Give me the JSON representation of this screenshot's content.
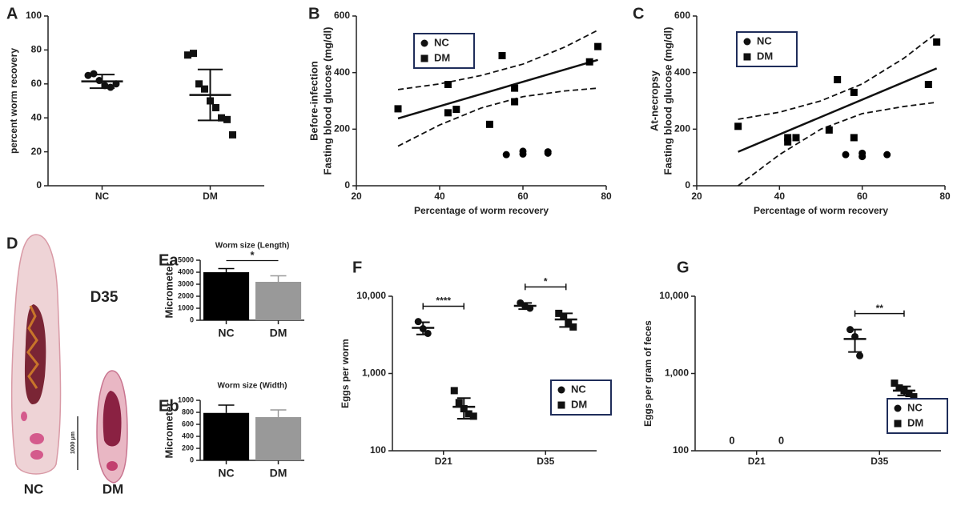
{
  "chart_data": [
    {
      "type": "dotplot",
      "label": "A",
      "ylabel": "percent worm recovery",
      "categories": [
        "NC",
        "DM"
      ],
      "markers": [
        "circle",
        "square"
      ],
      "values": [
        [
          65,
          66,
          62,
          59,
          58,
          60
        ],
        [
          77,
          78,
          60,
          57,
          50,
          46,
          40,
          39,
          30
        ]
      ],
      "mean": [
        61.5,
        53.5
      ],
      "sd": [
        4,
        15
      ],
      "ylim": [
        0,
        100
      ],
      "yticks": [
        0,
        20,
        40,
        60,
        80,
        100
      ]
    },
    {
      "type": "scatter",
      "label": "B",
      "xlabel": "Percentage of worm recovery",
      "ylabel": [
        "Before-infection",
        "Fasting blood glucose (mg/dl)"
      ],
      "xlim": [
        20,
        80
      ],
      "xticks": [
        20,
        40,
        60,
        80
      ],
      "ylim": [
        0,
        600
      ],
      "yticks": [
        0,
        200,
        400,
        600
      ],
      "legend": "upper left",
      "series": [
        {
          "name": "NC",
          "marker": "circle",
          "color": "#000000",
          "x": [
            56,
            60,
            60,
            66,
            66
          ],
          "y": [
            110,
            112,
            122,
            115,
            120
          ]
        },
        {
          "name": "DM",
          "marker": "square",
          "color": "#000000",
          "x": [
            30,
            42,
            42,
            44,
            52,
            55,
            58,
            58,
            76,
            78
          ],
          "y": [
            272,
            258,
            358,
            270,
            217,
            460,
            345,
            297,
            438,
            492
          ]
        }
      ],
      "lines": [
        {
          "x": [
            30,
            78
          ],
          "y": [
            238,
            445
          ],
          "dashed": false
        },
        {
          "x": [
            30,
            40,
            50,
            60,
            70,
            78
          ],
          "y": [
            340,
            360,
            390,
            430,
            490,
            550
          ],
          "dashed": true
        },
        {
          "x": [
            30,
            40,
            50,
            60,
            70,
            78
          ],
          "y": [
            140,
            215,
            275,
            315,
            335,
            345
          ],
          "dashed": true
        }
      ]
    },
    {
      "type": "scatter",
      "label": "C",
      "xlabel": "Percentage of worm recovery",
      "ylabel": [
        "At-necropsy",
        "Fasting blood glucose (mg/dl)"
      ],
      "xlim": [
        20,
        80
      ],
      "xticks": [
        20,
        40,
        60,
        80
      ],
      "ylim": [
        0,
        600
      ],
      "yticks": [
        0,
        200,
        400,
        600
      ],
      "legend": "upper left",
      "series": [
        {
          "name": "NC",
          "marker": "circle",
          "color": "#000000",
          "x": [
            56,
            60,
            60,
            66
          ],
          "y": [
            110,
            115,
            103,
            110
          ]
        },
        {
          "name": "DM",
          "marker": "square",
          "color": "#000000",
          "x": [
            30,
            42,
            42,
            44,
            52,
            54,
            58,
            58,
            76,
            78
          ],
          "y": [
            210,
            155,
            170,
            170,
            197,
            375,
            330,
            170,
            358,
            508
          ]
        }
      ],
      "lines": [
        {
          "x": [
            30,
            78
          ],
          "y": [
            120,
            415
          ],
          "dashed": false
        },
        {
          "x": [
            30,
            40,
            50,
            60,
            70,
            78
          ],
          "y": [
            235,
            260,
            300,
            360,
            450,
            540
          ],
          "dashed": true
        },
        {
          "x": [
            30,
            40,
            50,
            60,
            70,
            78
          ],
          "y": [
            0,
            110,
            200,
            255,
            280,
            295
          ],
          "dashed": true
        }
      ]
    },
    {
      "type": "bar",
      "label": "Ea",
      "title": "Worm size (Length)",
      "ylabel": "Micrometer",
      "categories": [
        "NC",
        "DM"
      ],
      "values": [
        4000,
        3200
      ],
      "errors": [
        300,
        500
      ],
      "colors": [
        "#000000",
        "#999999"
      ],
      "ylim": [
        0,
        5000
      ],
      "yticks": [
        0,
        1000,
        2000,
        3000,
        4000,
        5000
      ],
      "significance": "*"
    },
    {
      "type": "bar",
      "label": "Eb",
      "title": "Worm size (Width)",
      "ylabel": "Micrometer",
      "categories": [
        "NC",
        "DM"
      ],
      "values": [
        790,
        720
      ],
      "errors": [
        130,
        120
      ],
      "colors": [
        "#000000",
        "#999999"
      ],
      "ylim": [
        0,
        1000
      ],
      "yticks": [
        0,
        200,
        400,
        600,
        800,
        1000
      ]
    },
    {
      "type": "dotplot",
      "label": "F",
      "ylabel": "Eggs per worm",
      "categories": [
        "D21",
        "D35"
      ],
      "log_y": true,
      "ylim": [
        100,
        10000
      ],
      "yticks": [
        100,
        {
          "value": 1000,
          "label": "1,000"
        },
        {
          "value": 10000,
          "label": "10,000"
        }
      ],
      "legend": "lower right",
      "significance": [
        "****",
        "*"
      ],
      "series": [
        {
          "name": "NC",
          "marker": "circle",
          "values": [
            [
              4700,
              3800,
              3300
            ],
            [
              8200,
              7400,
              7000
            ]
          ],
          "mean": [
            3900,
            7500
          ],
          "sd": [
            700,
            700
          ]
        },
        {
          "name": "DM",
          "marker": "square",
          "values": [
            [
              600,
              420,
              350,
              300,
              280
            ],
            [
              6000,
              5500,
              4500,
              4000
            ]
          ],
          "mean": [
            370,
            5000
          ],
          "sd": [
            110,
            1000
          ]
        }
      ]
    },
    {
      "type": "dotplot",
      "label": "G",
      "ylabel": "Eggs per gram of feces",
      "categories": [
        "D21",
        "D35"
      ],
      "log_y": true,
      "ylim": [
        100,
        10000
      ],
      "yticks": [
        100,
        {
          "value": 1000,
          "label": "1,000"
        },
        {
          "value": 10000,
          "label": "10,000"
        }
      ],
      "legend": "right",
      "significance": [
        null,
        "**"
      ],
      "series": [
        {
          "name": "NC",
          "marker": "circle",
          "values": [
            [
              0,
              0,
              0
            ],
            [
              3700,
              3000,
              1700
            ]
          ],
          "mean": [
            0,
            2800
          ],
          "sd": [
            null,
            900
          ],
          "value_labels": [
            "0",
            null
          ]
        },
        {
          "name": "DM",
          "marker": "square",
          "values": [
            [
              0,
              0,
              0,
              0,
              0
            ],
            [
              750,
              650,
              600,
              550,
              500
            ]
          ],
          "mean": [
            0,
            600
          ],
          "sd": [
            null,
            80
          ],
          "value_labels": [
            "0",
            null
          ]
        }
      ]
    }
  ],
  "figure_d": {
    "label": "D",
    "title": "D35",
    "labels": [
      "NC",
      "DM"
    ],
    "scale_bar": "1000 μm"
  }
}
